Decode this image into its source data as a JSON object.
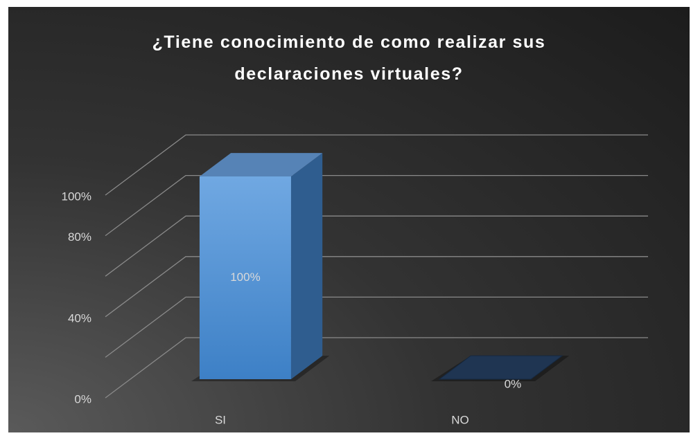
{
  "chart_data": {
    "type": "bar3d",
    "title": "¿Tiene conocimiento de como realizar sus declaraciones virtuales?",
    "categories": [
      "SI",
      "NO"
    ],
    "values": [
      100,
      0
    ],
    "value_labels": [
      "100%",
      "0%"
    ],
    "color": "#5b9bd5",
    "ylim": [
      0,
      100
    ],
    "yticks": [
      {
        "value": 0,
        "label": "0%"
      },
      {
        "value": 40,
        "label": "40%"
      },
      {
        "value": 80,
        "label": "80%"
      },
      {
        "value": 100,
        "label": "100%"
      }
    ],
    "gridlines": [
      0,
      20,
      40,
      60,
      80,
      100
    ],
    "grid": true
  }
}
